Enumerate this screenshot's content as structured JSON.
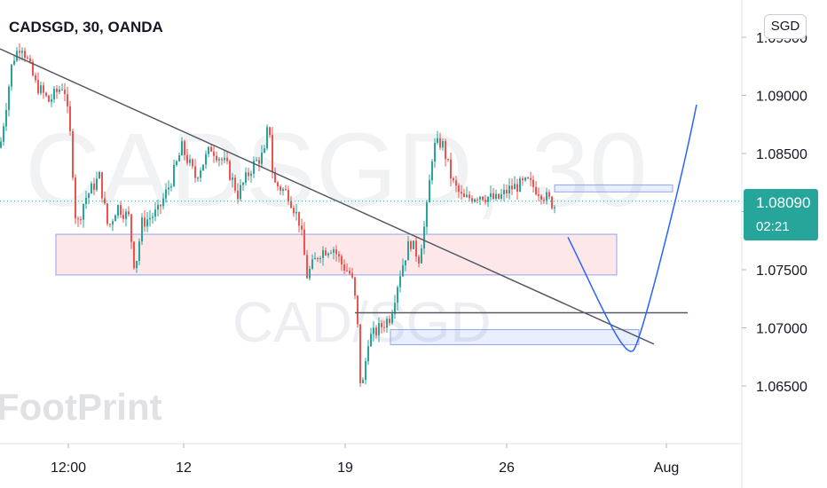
{
  "header": {
    "title": "CADSGD, 30, OANDA",
    "currency_button": "SGD"
  },
  "price_label": {
    "price": "1.08090",
    "countdown": "02:21",
    "color": "#26a69a"
  },
  "watermark": {
    "symbol": "CADSGD, 30",
    "pair": "CAD/SGD",
    "brand": "FootPrint"
  },
  "chart_data": {
    "type": "candlestick",
    "ylim": [
      1.0605,
      1.0995
    ],
    "x_ticks": [
      "12:00",
      "12",
      "19",
      "26",
      "Aug"
    ],
    "y_ticks": [
      "1.09500",
      "1.09000",
      "1.08500",
      "1.08000",
      "1.07500",
      "1.07000",
      "1.06500"
    ],
    "last_price": 1.0809,
    "colors": {
      "up": "#26a69a",
      "down": "#ef5350",
      "trendline": "#555b66",
      "projection": "#2962ff",
      "zone_border": "#90a4f0"
    },
    "key_points": [
      {
        "x": 0,
        "y": 1.0855
      },
      {
        "x": 14,
        "y": 1.093
      },
      {
        "x": 24,
        "y": 1.0945
      },
      {
        "x": 40,
        "y": 1.091
      },
      {
        "x": 55,
        "y": 1.0895
      },
      {
        "x": 72,
        "y": 1.091
      },
      {
        "x": 80,
        "y": 1.086
      },
      {
        "x": 86,
        "y": 1.0785
      },
      {
        "x": 95,
        "y": 1.081
      },
      {
        "x": 112,
        "y": 1.083
      },
      {
        "x": 122,
        "y": 1.0785
      },
      {
        "x": 132,
        "y": 1.0805
      },
      {
        "x": 145,
        "y": 1.0795
      },
      {
        "x": 152,
        "y": 1.075
      },
      {
        "x": 160,
        "y": 1.079
      },
      {
        "x": 178,
        "y": 1.08
      },
      {
        "x": 192,
        "y": 1.0825
      },
      {
        "x": 205,
        "y": 1.0855
      },
      {
        "x": 220,
        "y": 1.083
      },
      {
        "x": 238,
        "y": 1.0855
      },
      {
        "x": 255,
        "y": 1.084
      },
      {
        "x": 268,
        "y": 1.0815
      },
      {
        "x": 285,
        "y": 1.084
      },
      {
        "x": 298,
        "y": 1.085
      },
      {
        "x": 303,
        "y": 1.088
      },
      {
        "x": 308,
        "y": 1.0825
      },
      {
        "x": 325,
        "y": 1.0815
      },
      {
        "x": 338,
        "y": 1.079
      },
      {
        "x": 346,
        "y": 1.0745
      },
      {
        "x": 360,
        "y": 1.0765
      },
      {
        "x": 375,
        "y": 1.077
      },
      {
        "x": 385,
        "y": 1.0755
      },
      {
        "x": 396,
        "y": 1.0745
      },
      {
        "x": 402,
        "y": 1.0715
      },
      {
        "x": 407,
        "y": 1.064
      },
      {
        "x": 415,
        "y": 1.069
      },
      {
        "x": 428,
        "y": 1.07
      },
      {
        "x": 440,
        "y": 1.071
      },
      {
        "x": 450,
        "y": 1.0745
      },
      {
        "x": 462,
        "y": 1.0775
      },
      {
        "x": 472,
        "y": 1.076
      },
      {
        "x": 480,
        "y": 1.0795
      },
      {
        "x": 488,
        "y": 1.0855
      },
      {
        "x": 498,
        "y": 1.086
      },
      {
        "x": 510,
        "y": 1.0825
      },
      {
        "x": 522,
        "y": 1.081
      },
      {
        "x": 540,
        "y": 1.0815
      },
      {
        "x": 560,
        "y": 1.081
      },
      {
        "x": 575,
        "y": 1.082
      },
      {
        "x": 595,
        "y": 1.0825
      },
      {
        "x": 612,
        "y": 1.0815
      },
      {
        "x": 625,
        "y": 1.0805
      }
    ],
    "trendline": [
      {
        "x": 0,
        "y": 1.094
      },
      {
        "x": 737,
        "y": 1.0686
      }
    ],
    "horizontal_line": [
      {
        "x": 400,
        "y": 1.0713
      },
      {
        "x": 775,
        "y": 1.0713
      }
    ],
    "zones": [
      {
        "x1": 63,
        "x2": 695,
        "y1": 1.07455,
        "y2": 1.07805,
        "fill": "rgba(242,54,69,0.12)"
      },
      {
        "x1": 440,
        "x2": 720,
        "y1": 1.06855,
        "y2": 1.06985,
        "fill": "rgba(41,98,255,0.10)"
      },
      {
        "x1": 625,
        "x2": 758,
        "y1": 1.0817,
        "y2": 1.0823,
        "fill": "rgba(41,98,255,0.10)"
      }
    ],
    "projection": [
      {
        "x": 640,
        "y": 1.0778
      },
      {
        "x": 715,
        "y": 1.0682
      },
      {
        "x": 785,
        "y": 1.0892
      }
    ]
  }
}
